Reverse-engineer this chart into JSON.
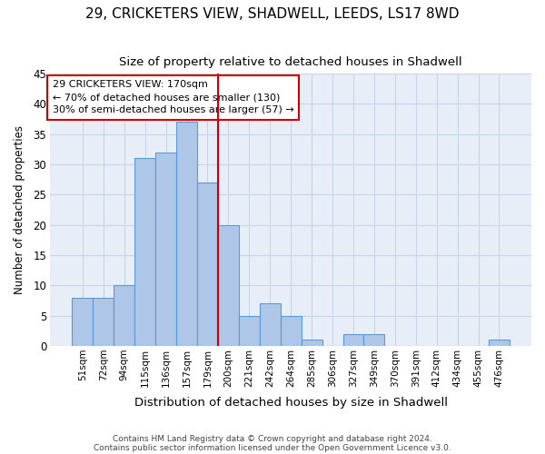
{
  "title1": "29, CRICKETERS VIEW, SHADWELL, LEEDS, LS17 8WD",
  "title2": "Size of property relative to detached houses in Shadwell",
  "xlabel": "Distribution of detached houses by size in Shadwell",
  "ylabel": "Number of detached properties",
  "categories": [
    "51sqm",
    "72sqm",
    "94sqm",
    "115sqm",
    "136sqm",
    "157sqm",
    "179sqm",
    "200sqm",
    "221sqm",
    "242sqm",
    "264sqm",
    "285sqm",
    "306sqm",
    "327sqm",
    "349sqm",
    "370sqm",
    "391sqm",
    "412sqm",
    "434sqm",
    "455sqm",
    "476sqm"
  ],
  "values": [
    8,
    8,
    10,
    31,
    32,
    37,
    27,
    20,
    5,
    7,
    5,
    1,
    0,
    2,
    2,
    0,
    0,
    0,
    0,
    0,
    1
  ],
  "bar_color": "#aec6e8",
  "bar_edge_color": "#5b9bd5",
  "vline_x": 6.5,
  "vline_color": "#cc0000",
  "annotation_text": "29 CRICKETERS VIEW: 170sqm\n← 70% of detached houses are smaller (130)\n30% of semi-detached houses are larger (57) →",
  "annotation_box_color": "#ffffff",
  "annotation_box_edge_color": "#cc0000",
  "ylim": [
    0,
    45
  ],
  "yticks": [
    0,
    5,
    10,
    15,
    20,
    25,
    30,
    35,
    40,
    45
  ],
  "footnote1": "Contains HM Land Registry data © Crown copyright and database right 2024.",
  "footnote2": "Contains public sector information licensed under the Open Government Licence v3.0.",
  "grid_color": "#c8d4e8",
  "bg_color": "#e8eef8",
  "title1_fontsize": 11,
  "title2_fontsize": 9.5
}
